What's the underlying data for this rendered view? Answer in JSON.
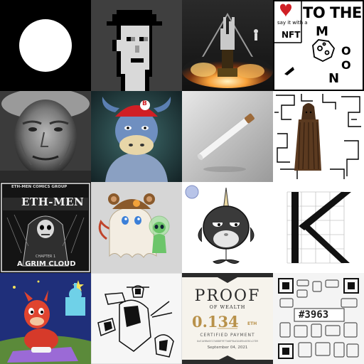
{
  "gallery": {
    "tiles": [
      {
        "alt": "white circle"
      },
      {
        "alt": "pixel punk with hat"
      },
      {
        "alt": "rock hand trophy on fire"
      },
      {
        "alt": "to the moon drawing",
        "heart_caption": "say it with a",
        "nft_label": "NFT",
        "title_line1": "TO THE",
        "moon_letters": [
          "M",
          "O",
          "O",
          "N"
        ]
      },
      {
        "alt": "portrait of elderly woman"
      },
      {
        "alt": "bull with red cap",
        "cap_letter": "B"
      },
      {
        "alt": "floating cigarette"
      },
      {
        "alt": "bearded figure in maze"
      },
      {
        "alt": "eth-men comic cover",
        "header": "ETH-MEN COMICS GROUP",
        "logo": "ETH-MEN",
        "chapter": "CHAPTER 1",
        "title": "A GRIM CLOUD"
      },
      {
        "alt": "ghost bear and alien"
      },
      {
        "alt": "grumpy narwhal"
      },
      {
        "alt": "letter K on grid"
      },
      {
        "alt": "red llama on carpet"
      },
      {
        "alt": "ink sketch of gunslingers"
      },
      {
        "alt": "proof of wealth certificate",
        "line1": "PROOF",
        "line2": "OF WEALTH",
        "amount": "0.134",
        "unit": "ETH",
        "caption": "CERTIFIED PAYMENT",
        "address": "0xE1d9Bd6f27A8B8F9F73d8F9bd3A4B9e4EBCc27D9",
        "date": "September 04, 2021"
      },
      {
        "alt": "qr code mosaic",
        "number": "#3963"
      }
    ]
  },
  "colors": {
    "black": "#000000",
    "cream": "#f6f3ec",
    "gold": "#b8914a",
    "red": "#d01f25"
  }
}
